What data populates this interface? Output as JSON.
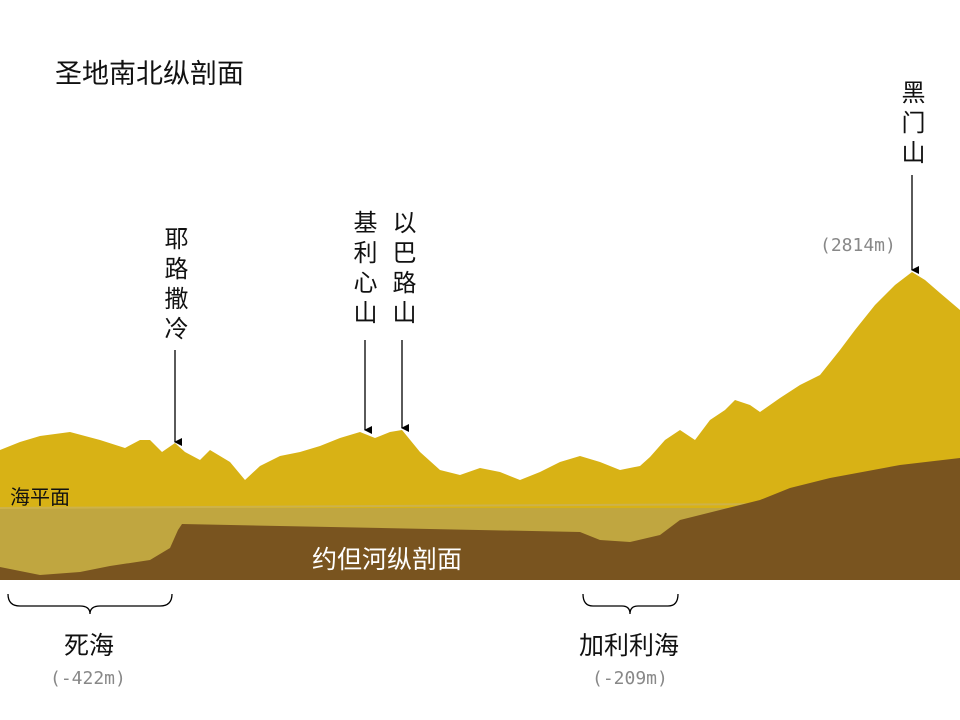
{
  "title": "圣地南北纵剖面",
  "peaks": {
    "jerusalem": "耶路撒冷",
    "gerizim": "基利心山",
    "ebal": "以巴路山",
    "hermon": "黑门山",
    "hermon_elevation": "(2814m)"
  },
  "sea_level_label": "海平面",
  "section_label": "约但河纵剖面",
  "dead_sea": {
    "name": "死海",
    "elevation": "(-422m)"
  },
  "galilee": {
    "name": "加利利海",
    "elevation": "(-209m)"
  },
  "colors": {
    "mountain": "#d8b215",
    "water": "#c0a640",
    "earth": "#79541f"
  }
}
